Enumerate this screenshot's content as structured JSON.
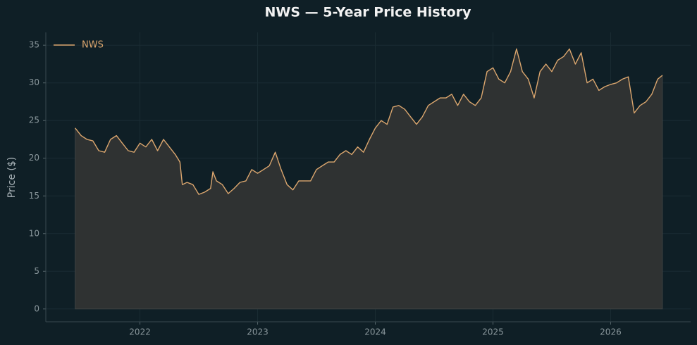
{
  "chart_data": {
    "type": "line",
    "title": "NWS — 5-Year Price History",
    "y_label": "Price ($)",
    "x": [
      2021.45,
      2021.5,
      2021.55,
      2021.6,
      2021.65,
      2021.7,
      2021.75,
      2021.8,
      2021.85,
      2021.9,
      2021.95,
      2022.0,
      2022.05,
      2022.1,
      2022.15,
      2022.2,
      2022.25,
      2022.3,
      2022.34,
      2022.36,
      2022.4,
      2022.45,
      2022.5,
      2022.55,
      2022.6,
      2022.62,
      2022.65,
      2022.7,
      2022.75,
      2022.8,
      2022.85,
      2022.9,
      2022.95,
      2023.0,
      2023.05,
      2023.1,
      2023.15,
      2023.2,
      2023.25,
      2023.3,
      2023.35,
      2023.4,
      2023.45,
      2023.5,
      2023.55,
      2023.6,
      2023.65,
      2023.7,
      2023.75,
      2023.8,
      2023.85,
      2023.9,
      2023.95,
      2024.0,
      2024.05,
      2024.1,
      2024.15,
      2024.2,
      2024.25,
      2024.3,
      2024.35,
      2024.4,
      2024.45,
      2024.5,
      2024.55,
      2024.6,
      2024.65,
      2024.7,
      2024.75,
      2024.8,
      2024.85,
      2024.9,
      2024.95,
      2025.0,
      2025.05,
      2025.1,
      2025.15,
      2025.2,
      2025.25,
      2025.3,
      2025.35,
      2025.4,
      2025.45,
      2025.5,
      2025.55,
      2025.6,
      2025.65,
      2025.7,
      2025.75,
      2025.8,
      2025.85,
      2025.9,
      2025.95,
      2026.0,
      2026.05,
      2026.1,
      2026.15,
      2026.2,
      2026.25,
      2026.3,
      2026.35,
      2026.4,
      2026.44
    ],
    "series": [
      {
        "name": "NWS",
        "color": "#dba66e",
        "values": [
          24.0,
          23.0,
          22.5,
          22.3,
          21.0,
          20.8,
          22.5,
          23.0,
          22.0,
          21.0,
          20.8,
          22.0,
          21.5,
          22.5,
          21.0,
          22.5,
          21.5,
          20.5,
          19.5,
          16.5,
          16.8,
          16.5,
          15.2,
          15.5,
          16.0,
          18.2,
          17.0,
          16.5,
          15.3,
          16.0,
          16.8,
          17.0,
          18.5,
          18.0,
          18.5,
          19.0,
          20.8,
          18.5,
          16.5,
          15.8,
          17.0,
          17.0,
          17.0,
          18.5,
          19.0,
          19.5,
          19.5,
          20.5,
          21.0,
          20.5,
          21.5,
          20.8,
          22.5,
          24.0,
          25.0,
          24.5,
          26.8,
          27.0,
          26.5,
          25.5,
          24.5,
          25.5,
          27.0,
          27.5,
          28.0,
          28.0,
          28.5,
          27.0,
          28.5,
          27.5,
          27.0,
          28.0,
          31.5,
          32.0,
          30.5,
          30.0,
          31.5,
          34.5,
          31.5,
          30.5,
          28.0,
          31.5,
          32.5,
          31.5,
          33.0,
          33.5,
          34.5,
          32.5,
          34.0,
          30.0,
          30.5,
          29.0,
          29.5,
          29.8,
          30.0,
          30.5,
          30.8,
          26.0,
          27.0,
          27.5,
          28.5,
          30.5,
          31.0
        ]
      }
    ],
    "xlim": [
      2021.2,
      2026.68
    ],
    "xticks": [
      2022,
      2023,
      2024,
      2025,
      2026
    ],
    "ylim": [
      -1.7,
      36.7
    ],
    "yticks": [
      0,
      5,
      10,
      15,
      20,
      25,
      30,
      35
    ],
    "grid": true,
    "fill_area": true,
    "legend": "upper-left"
  }
}
